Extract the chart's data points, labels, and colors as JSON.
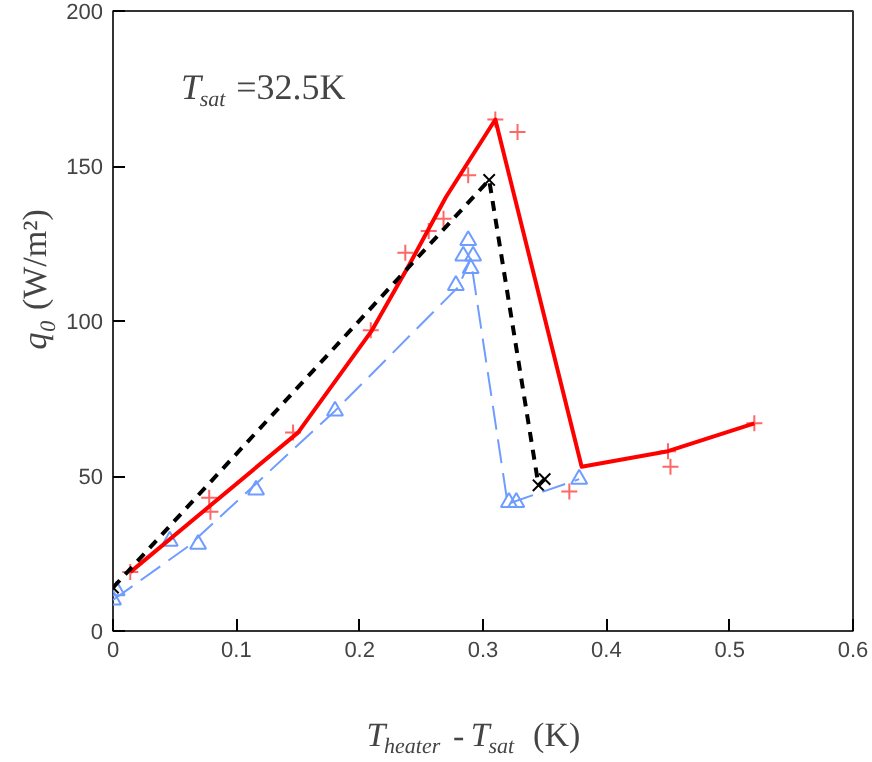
{
  "chart_data": {
    "type": "line",
    "xlabel": "T$_{heater}$-T$_{sat}$ (K)",
    "ylabel": "q$_{0}$ (W/m²)",
    "annotations": [
      "T$_{sat}$=32.5K"
    ],
    "xlim": [
      0,
      0.6
    ],
    "ylim": [
      0,
      200
    ],
    "xticks": [
      0,
      0.1,
      0.2,
      0.3,
      0.4,
      0.5,
      0.6
    ],
    "yticks": [
      0,
      50,
      100,
      150,
      200
    ],
    "grid": false,
    "series": [
      {
        "type": "scatter",
        "marker": "cross",
        "color": "#ff6666",
        "x": [
          0.014,
          0.078,
          0.079,
          0.146,
          0.209,
          0.237,
          0.256,
          0.268,
          0.288,
          0.31,
          0.328,
          0.37,
          0.45,
          0.452,
          0.52
        ],
        "values": [
          19,
          43,
          38.5,
          64,
          97,
          122,
          129,
          133,
          147,
          165,
          161,
          45,
          58,
          53,
          67
        ]
      },
      {
        "type": "scatter",
        "marker": "triangle",
        "color": "#6f9cff",
        "x": [
          0,
          0.003,
          0.046,
          0.069,
          0.116,
          0.18,
          0.278,
          0.284,
          0.288,
          0.29,
          0.292,
          0.321,
          0.327,
          0.378
        ],
        "values": [
          10,
          13,
          29,
          28,
          45.5,
          71,
          111.5,
          121,
          126,
          117,
          121,
          41.5,
          41.5,
          49
        ]
      },
      {
        "line_style": "solid",
        "color": "#ff0000",
        "x": [
          0.014,
          0.15,
          0.21,
          0.24,
          0.27,
          0.31,
          0.38,
          0.45,
          0.52
        ],
        "values": [
          19,
          64,
          97,
          118,
          140,
          165,
          53,
          58,
          67
        ]
      },
      {
        "type": "line",
        "line_style": "dashed",
        "color": "#000000",
        "marker": "x",
        "x": [
          0,
          0.305,
          0.345,
          0.35
        ],
        "values": [
          14,
          145.5,
          47,
          49
        ]
      },
      {
        "type": "line",
        "line_style": "longdash",
        "color": "#6f9cff",
        "x": [
          0,
          0.06,
          0.18,
          0.28,
          0.29,
          0.32,
          0.378
        ],
        "values": [
          10,
          27,
          71,
          111,
          120,
          41,
          49
        ]
      }
    ]
  }
}
